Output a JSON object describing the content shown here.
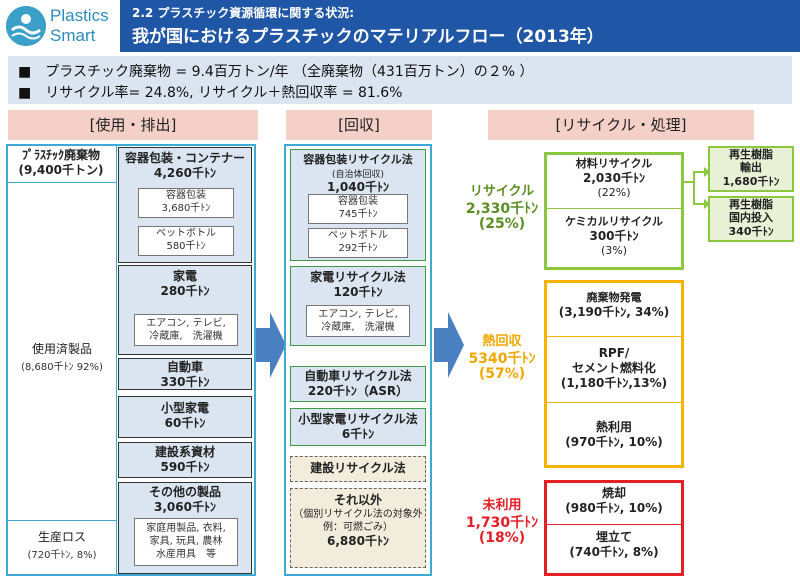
{
  "logo": {
    "line1": "Plastics",
    "line2": "Smart"
  },
  "header": {
    "subtitle": "2.2 プラスチック資源循環に関する状況:",
    "title": "我が国におけるプラスチックのマテリアルフロー（2013年）"
  },
  "summary": {
    "line1": "■　プラスチック廃棄物 = 9.4百万トン/年 （全廃棄物（431百万トン）の２% ）",
    "line2": "■　リサイクル率= 24.8%,  リサイクル＋熱回収率 = 81.6%"
  },
  "sections": {
    "use": "[使用・排出]",
    "collect": "[回収]",
    "recycle": "[リサイクル・処理]"
  },
  "use_column": {
    "waste_title": "ﾌﾟﾗｽﾁｯｸ廃棄物",
    "waste_value": "(9,400千トン)",
    "used_label": "使用済製品",
    "used_value": "(8,680千ﾄﾝ 92%)",
    "loss_label": "生産ロス",
    "loss_value": "(720千ﾄﾝ, 8%)",
    "container_title": "容器包装・コンテナー",
    "container_value": "4,260千ﾄﾝ",
    "pkg_label": "容器包装",
    "pkg_value": "3,680千ﾄﾝ",
    "pet_label": "ペットボトル",
    "pet_value": "580千ﾄﾝ",
    "appliance_title": "家電",
    "appliance_value": "280千ﾄﾝ",
    "appliance_items": "エアコン, テレビ,\n冷蔵庫,　洗濯機",
    "car_title": "自動車",
    "car_value": "330千ﾄﾝ",
    "small_title": "小型家電",
    "small_value": "60千ﾄﾝ",
    "build_title": "建設系資材",
    "build_value": "590千ﾄﾝ",
    "other_title": "その他の製品",
    "other_value": "3,060千ﾄﾝ",
    "other_items": "家庭用製品, 衣料,\n家具, 玩具, 農林\n水産用具　等"
  },
  "collect_column": {
    "pkg_law": "容器包装リサイクル法",
    "pkg_law_sub": "(自治体回収)",
    "pkg_law_value": "1,040千ﾄﾝ",
    "pkg_label": "容器包装",
    "pkg_value": "745千ﾄﾝ",
    "pet_label": "ペットボトル",
    "pet_value": "292千ﾄﾝ",
    "appliance_law": "家電リサイクル法",
    "appliance_law_value": "120千ﾄﾝ",
    "appliance_items": "エアコン, テレビ,\n冷蔵庫,　洗濯機",
    "car_law": "自動車リサイクル法",
    "car_law_value": "220千ﾄﾝ（ASR）",
    "small_law": "小型家電リサイクル法",
    "small_law_value": "6千ﾄﾝ",
    "build_law": "建設リサイクル法",
    "other_title": "それ以外",
    "other_sub": "（個別リサイクル法の対象外\n例：可燃ごみ）",
    "other_value": "6,880千ﾄﾝ"
  },
  "recycle_column": {
    "recycle_label": "リサイクル",
    "recycle_value": "2,330千ﾄﾝ",
    "recycle_pct": "(25%)",
    "material_title": "材料リサイクル",
    "material_value": "2,030千ﾄﾝ",
    "material_pct": "(22%)",
    "chemical_title": "ケミカルリサイクル",
    "chemical_value": "300千ﾄﾝ",
    "chemical_pct": "(3%)",
    "export_title": "再生樹脂\n輸出",
    "export_value": "1,680千ﾄﾝ",
    "domestic_title": "再生樹脂\n国内投入",
    "domestic_value": "340千ﾄﾝ",
    "heat_label": "熱回収",
    "heat_value": "5340千ﾄﾝ",
    "heat_pct": "(57%)",
    "power_title": "廃棄物発電",
    "power_value": "(3,190千ﾄﾝ, 34%)",
    "rpf_title": "RPF/\nセメント燃料化",
    "rpf_value": "(1,180千ﾄﾝ,13%)",
    "heatuse_title": "熱利用",
    "heatuse_value": "(970千ﾄﾝ, 10%)",
    "unused_label": "未利用",
    "unused_value": "1,730千ﾄﾝ",
    "unused_pct": "(18%)",
    "incin_title": "焼却",
    "incin_value": "(980千ﾄﾝ, 10%)",
    "landfill_title": "埋立て",
    "landfill_value": "(740千ﾄﾝ, 8%)"
  },
  "colors": {
    "title_bg": "#1f56a5",
    "frame": "#3fa9d6",
    "green": "#8dc63f",
    "orange": "#f6b400",
    "red": "#e31e24",
    "arrow": "#4a7fc1"
  }
}
